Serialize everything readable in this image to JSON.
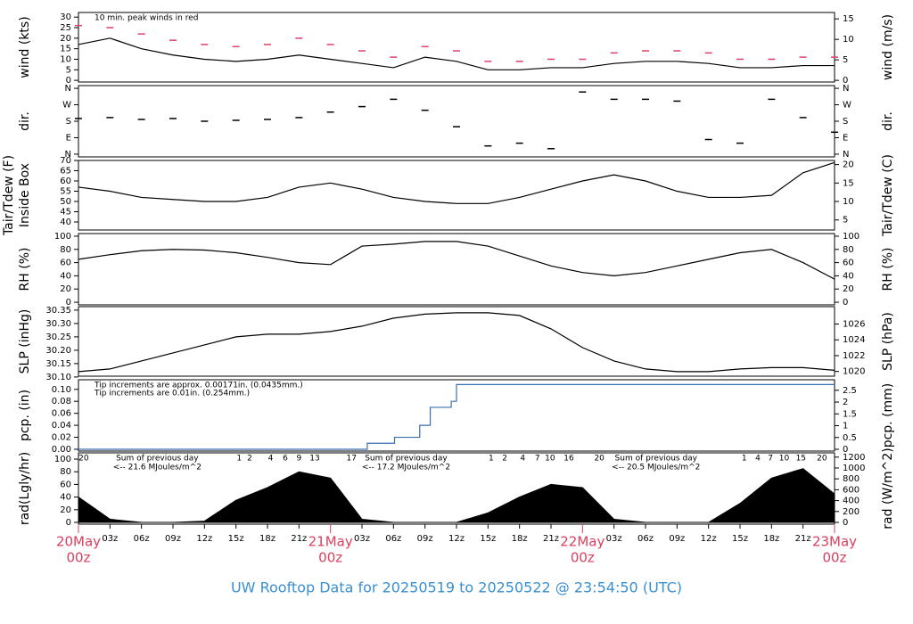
{
  "footer": "UW Rooftop Data for 20250519  to  20250522 @ 23:54:50  (UTC)",
  "chart_data": [
    {
      "type": "line",
      "ylabel": "wind (kts)",
      "y2label": "wind (m/s)",
      "xlim": [
        0,
        72
      ],
      "ylim": [
        -0.8,
        32.2
      ],
      "yticks": [
        0,
        5,
        10,
        15,
        20,
        25,
        30
      ],
      "y2lim": [
        -0.41,
        16.56
      ],
      "y2ticks": [
        0,
        5,
        10,
        15
      ],
      "annotations": [
        {
          "text": "10 min. peak winds in red",
          "color": "#e0406a"
        }
      ],
      "x": [
        0,
        3,
        6,
        9,
        12,
        15,
        18,
        21,
        24,
        27,
        30,
        33,
        36,
        39,
        42,
        45,
        48,
        51,
        54,
        57,
        60,
        63,
        66,
        69,
        72
      ],
      "series": [
        {
          "name": "wind",
          "mark": "line",
          "color": "#000000",
          "values": [
            17,
            20,
            15,
            12,
            10,
            9,
            10,
            12,
            10,
            8,
            6,
            11,
            9,
            5,
            5,
            6,
            6,
            8,
            9,
            9,
            8,
            6,
            6,
            7,
            7
          ]
        },
        {
          "name": "peak",
          "mark": "dash",
          "color": "#e0406a",
          "values": [
            26,
            25,
            22,
            19,
            17,
            16,
            17,
            20,
            17,
            14,
            11,
            16,
            14,
            9,
            9,
            10,
            10,
            13,
            14,
            14,
            13,
            10,
            10,
            11,
            11
          ]
        }
      ]
    },
    {
      "type": "scatter",
      "ylabel": "dir.",
      "y2label": "dir.",
      "xlim": [
        0,
        72
      ],
      "ylim": [
        -15,
        375
      ],
      "yticks": [
        {
          "value": 0,
          "label": "N"
        },
        {
          "value": 90,
          "label": "E"
        },
        {
          "value": 180,
          "label": "S"
        },
        {
          "value": 270,
          "label": "W"
        },
        {
          "value": 360,
          "label": "N"
        }
      ],
      "y2lim": [
        -15,
        375
      ],
      "y2ticks": [
        {
          "value": 0,
          "label": "N"
        },
        {
          "value": 90,
          "label": "E"
        },
        {
          "value": 180,
          "label": "S"
        },
        {
          "value": 270,
          "label": "W"
        },
        {
          "value": 360,
          "label": "N"
        }
      ],
      "x": [
        0,
        3,
        6,
        9,
        12,
        15,
        18,
        21,
        24,
        27,
        30,
        33,
        36,
        39,
        42,
        45,
        48,
        51,
        54,
        57,
        60,
        63,
        66,
        69,
        72
      ],
      "series": [
        {
          "name": "dir",
          "mark": "dash",
          "color": "#000000",
          "values": [
            195,
            200,
            190,
            195,
            180,
            185,
            190,
            200,
            230,
            260,
            300,
            240,
            150,
            45,
            60,
            30,
            340,
            300,
            300,
            290,
            80,
            60,
            300,
            200,
            120
          ]
        }
      ]
    },
    {
      "type": "line",
      "ylabel": [
        "Tair/Tdew (F)",
        "Inside Box"
      ],
      "y2label": "Tair/Tdew (C)",
      "xlim": [
        0,
        72
      ],
      "ylim": [
        36.1,
        70
      ],
      "yticks": [
        40,
        45,
        50,
        55,
        60,
        65,
        70
      ],
      "y2lim": [
        2.28,
        21.11
      ],
      "y2ticks": [
        5,
        10,
        15,
        20
      ],
      "x": [
        0,
        3,
        6,
        9,
        12,
        15,
        18,
        21,
        24,
        27,
        30,
        33,
        36,
        39,
        42,
        45,
        48,
        51,
        54,
        57,
        60,
        63,
        66,
        69,
        72
      ],
      "series": [
        {
          "name": "Tair",
          "mark": "line",
          "color": "#000000",
          "values": [
            57,
            55,
            52,
            51,
            50,
            50,
            52,
            57,
            59,
            56,
            52,
            50,
            49,
            49,
            52,
            56,
            60,
            63,
            60,
            55,
            52,
            52,
            53,
            64,
            69
          ]
        }
      ]
    },
    {
      "type": "line",
      "ylabel": "RH (%)",
      "y2label": "RH (%)",
      "xlim": [
        0,
        72
      ],
      "ylim": [
        -4,
        104
      ],
      "yticks": [
        0,
        20,
        40,
        60,
        80,
        100
      ],
      "y2lim": [
        -4,
        104
      ],
      "y2ticks": [
        0,
        20,
        40,
        60,
        80,
        100
      ],
      "x": [
        0,
        3,
        6,
        9,
        12,
        15,
        18,
        21,
        24,
        27,
        30,
        33,
        36,
        39,
        42,
        45,
        48,
        51,
        54,
        57,
        60,
        63,
        66,
        69,
        72
      ],
      "series": [
        {
          "name": "RH",
          "mark": "line",
          "color": "#000000",
          "values": [
            65,
            72,
            78,
            80,
            79,
            75,
            68,
            60,
            57,
            85,
            88,
            92,
            92,
            85,
            70,
            55,
            45,
            40,
            45,
            55,
            65,
            75,
            80,
            60,
            35
          ]
        }
      ]
    },
    {
      "type": "line",
      "ylabel": "SLP (inHg)",
      "y2label": "SLP (hPa)",
      "xlim": [
        0,
        72
      ],
      "ylim": [
        30.103,
        30.363
      ],
      "yticks": [
        {
          "value": 30.1,
          "label": "30.10"
        },
        30.15,
        {
          "value": 30.2,
          "label": "30.20"
        },
        30.25,
        {
          "value": 30.3,
          "label": "30.30"
        },
        30.35
      ],
      "y2lim": [
        1019.4,
        1028.2
      ],
      "y2ticks": [
        1020,
        1022,
        1024,
        1026
      ],
      "x": [
        0,
        3,
        6,
        9,
        12,
        15,
        18,
        21,
        24,
        27,
        30,
        33,
        36,
        39,
        42,
        45,
        48,
        51,
        54,
        57,
        60,
        63,
        66,
        69,
        72
      ],
      "series": [
        {
          "name": "SLP",
          "mark": "line",
          "color": "#000000",
          "values": [
            30.12,
            30.13,
            30.16,
            30.19,
            30.22,
            30.25,
            30.26,
            30.26,
            30.27,
            30.29,
            30.32,
            30.335,
            30.34,
            30.34,
            30.33,
            30.28,
            30.21,
            30.16,
            30.13,
            30.12,
            30.12,
            30.13,
            30.135,
            30.135,
            30.125
          ]
        }
      ]
    },
    {
      "type": "line",
      "ylabel": "pcp. (in)",
      "y2label": "pcp. (mm)",
      "xlim": [
        0,
        72
      ],
      "ylim": [
        -0.003,
        0.116
      ],
      "yticks": [
        {
          "value": 0,
          "label": "0.00"
        },
        0.02,
        0.04,
        0.06,
        0.08,
        {
          "value": 0.1,
          "label": "0.10"
        }
      ],
      "y2lim": [
        -0.076,
        2.946
      ],
      "y2ticks": [
        0,
        0.5,
        1,
        1.5,
        2,
        2.5
      ],
      "annotations": [
        {
          "text": "Tip increments are approx. 0.00171in. (0.0435mm.)",
          "color": "#e0406a"
        },
        {
          "text": "Tip increments are 0.01in. (0.254mm.)",
          "color": "#3a8fd0"
        }
      ],
      "x": [
        0,
        27.5,
        30.1,
        32.5,
        33.5,
        35.5,
        36,
        72
      ],
      "series": [
        {
          "name": "pcp",
          "mark": "step",
          "color": "#3a6fb0",
          "values": [
            0,
            0.01,
            0.02,
            0.04,
            0.07,
            0.08,
            0.108,
            0.108
          ]
        }
      ]
    },
    {
      "type": "line",
      "ylabel": "rad(Lgly/hr)",
      "y2label": "rad (W/m^2)",
      "xlim": [
        0,
        72
      ],
      "ylim": [
        -2.8,
        109.9
      ],
      "yticks": [
        0,
        20,
        40,
        60,
        80,
        100
      ],
      "y2lim": [
        -32.6,
        1278
      ],
      "y2ticks": [
        0,
        200,
        400,
        600,
        800,
        1000,
        1200
      ],
      "x": [
        0,
        3,
        6,
        9,
        12,
        15,
        18,
        21,
        24,
        27,
        30,
        33,
        36,
        39,
        42,
        45,
        48,
        51,
        54,
        57,
        60,
        63,
        66,
        69,
        72
      ],
      "series": [
        {
          "name": "rad",
          "mark": "area",
          "color": "#000000",
          "values": [
            40,
            5,
            0,
            0,
            2,
            35,
            55,
            80,
            70,
            5,
            0,
            0,
            0,
            15,
            40,
            60,
            55,
            5,
            0,
            0,
            0,
            30,
            70,
            85,
            45
          ]
        }
      ],
      "hour_marks": [
        {
          "x": 0.5,
          "label": "20"
        },
        {
          "x": 15.3,
          "label": "1"
        },
        {
          "x": 16.3,
          "label": "2"
        },
        {
          "x": 18.3,
          "label": "4"
        },
        {
          "x": 19.7,
          "label": "6"
        },
        {
          "x": 21,
          "label": "9"
        },
        {
          "x": 22.5,
          "label": "13"
        },
        {
          "x": 26,
          "label": "17"
        },
        {
          "x": 39.3,
          "label": "1"
        },
        {
          "x": 40.6,
          "label": "2"
        },
        {
          "x": 42.3,
          "label": "4"
        },
        {
          "x": 43.7,
          "label": "7"
        },
        {
          "x": 44.9,
          "label": "10"
        },
        {
          "x": 46.7,
          "label": "16"
        },
        {
          "x": 49.6,
          "label": "20"
        },
        {
          "x": 63.4,
          "label": "1"
        },
        {
          "x": 64.7,
          "label": "4"
        },
        {
          "x": 65.9,
          "label": "7"
        },
        {
          "x": 67.2,
          "label": "10"
        },
        {
          "x": 68.8,
          "label": "15"
        },
        {
          "x": 70.8,
          "label": "20"
        }
      ],
      "day_sums": [
        {
          "x": 7.5,
          "label": "Sum of previous day",
          "note": "<-- 21.6 MJoules/m^2"
        },
        {
          "x": 31.2,
          "label": "Sum of previous day",
          "note": "<-- 17.2 MJoules/m^2"
        },
        {
          "x": 55,
          "label": "Sum of previous day",
          "note": "<-- 20.5 MJoules/m^2"
        }
      ],
      "xticks": [
        {
          "value": 0,
          "label": "00z"
        },
        {
          "value": 3,
          "label": "03z"
        },
        {
          "value": 6,
          "label": "06z"
        },
        {
          "value": 9,
          "label": "09z"
        },
        {
          "value": 12,
          "label": "12z"
        },
        {
          "value": 15,
          "label": "15z"
        },
        {
          "value": 18,
          "label": "18z"
        },
        {
          "value": 21,
          "label": "21z"
        },
        {
          "value": 24,
          "label": "00z"
        },
        {
          "value": 27,
          "label": "03z"
        },
        {
          "value": 30,
          "label": "06z"
        },
        {
          "value": 33,
          "label": "09z"
        },
        {
          "value": 36,
          "label": "12z"
        },
        {
          "value": 39,
          "label": "15z"
        },
        {
          "value": 42,
          "label": "18z"
        },
        {
          "value": 45,
          "label": "21z"
        },
        {
          "value": 48,
          "label": "00z"
        },
        {
          "value": 51,
          "label": "03z"
        },
        {
          "value": 54,
          "label": "06z"
        },
        {
          "value": 57,
          "label": "09z"
        },
        {
          "value": 60,
          "label": "12z"
        },
        {
          "value": 63,
          "label": "15z"
        },
        {
          "value": 66,
          "label": "18z"
        },
        {
          "value": 69,
          "label": "21z"
        },
        {
          "value": 72,
          "label": "00z"
        }
      ],
      "day_labels": [
        {
          "value": 0,
          "label": "20May"
        },
        {
          "value": 24,
          "label": "21May"
        },
        {
          "value": 48,
          "label": "22May"
        },
        {
          "value": 72,
          "label": "23May"
        }
      ]
    }
  ]
}
